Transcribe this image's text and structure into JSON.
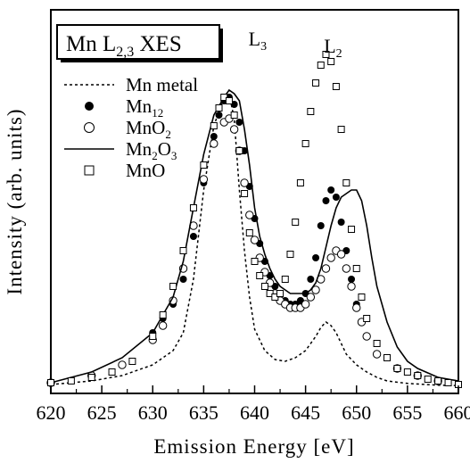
{
  "chart_data": {
    "type": "scatter",
    "title": "Mn L",
    "title_sub": "2,3",
    "title_suffix": " XES",
    "xlabel": "Emission Energy [eV]",
    "ylabel": "Intensity (arb. units)",
    "xlim": [
      620,
      660
    ],
    "ylim": [
      0,
      1.0
    ],
    "grid": false,
    "legend_position": "left",
    "x_ticks": [
      620,
      625,
      630,
      635,
      640,
      645,
      650,
      655,
      660
    ],
    "y_ticks": [],
    "peak_labels": [
      {
        "main": "L",
        "sub": "3",
        "x": 639.4,
        "y": 0.955
      },
      {
        "main": "L",
        "sub": "2",
        "x": 646.8,
        "y": 0.935
      }
    ],
    "series": [
      {
        "name": "Mn metal",
        "name_main": "Mn metal",
        "name_sub": "",
        "name_suffix": "",
        "style": "dotted",
        "x": [
          620,
          624,
          627,
          630,
          632,
          633,
          634,
          635,
          636,
          637,
          637.5,
          638,
          638.5,
          639,
          639.5,
          640,
          641,
          642,
          643,
          644,
          645,
          646,
          646.5,
          647,
          647.5,
          648,
          649,
          650,
          651,
          652,
          653,
          655,
          658,
          660
        ],
        "y": [
          0.005,
          0.015,
          0.03,
          0.06,
          0.1,
          0.15,
          0.3,
          0.55,
          0.73,
          0.81,
          0.82,
          0.75,
          0.55,
          0.38,
          0.25,
          0.16,
          0.1,
          0.075,
          0.07,
          0.08,
          0.1,
          0.14,
          0.165,
          0.18,
          0.17,
          0.15,
          0.09,
          0.06,
          0.04,
          0.025,
          0.015,
          0.008,
          0.003,
          0.002
        ]
      },
      {
        "name": "Mn12",
        "name_main": "Mn",
        "name_sub": "12",
        "name_suffix": "",
        "style": "filled-circle",
        "x": [
          630,
          631,
          632,
          633,
          634,
          635,
          636,
          636.5,
          637,
          637.5,
          638,
          638.5,
          639,
          639.5,
          640,
          640.5,
          641,
          641.5,
          642,
          642.5,
          643,
          643.5,
          644,
          644.5,
          645,
          645.5,
          646,
          646.5,
          647,
          647.5,
          648,
          648.5,
          649,
          649.5,
          650,
          650.5,
          651,
          652,
          654,
          656,
          658
        ],
        "y": [
          0.15,
          0.19,
          0.23,
          0.3,
          0.42,
          0.57,
          0.7,
          0.76,
          0.8,
          0.81,
          0.79,
          0.74,
          0.66,
          0.56,
          0.47,
          0.4,
          0.35,
          0.31,
          0.28,
          0.26,
          0.24,
          0.23,
          0.23,
          0.24,
          0.26,
          0.3,
          0.36,
          0.45,
          0.52,
          0.55,
          0.53,
          0.46,
          0.38,
          0.3,
          0.23,
          0.18,
          0.14,
          0.09,
          0.05,
          0.03,
          0.015
        ]
      },
      {
        "name": "MnO2",
        "name_main": "MnO",
        "name_sub": "2",
        "name_suffix": "",
        "style": "open-circle",
        "x": [
          620,
          624,
          627,
          630,
          631,
          632,
          633,
          634,
          635,
          636,
          637,
          637.5,
          638,
          638.5,
          639,
          639.5,
          640,
          640.5,
          641,
          641.5,
          642,
          642.5,
          643,
          643.5,
          644,
          644.5,
          645,
          645.5,
          646,
          646.5,
          647,
          647.5,
          648,
          648.5,
          649,
          649.5,
          650,
          650.5,
          651,
          652,
          654,
          656,
          658
        ],
        "y": [
          0.01,
          0.03,
          0.06,
          0.13,
          0.17,
          0.24,
          0.33,
          0.45,
          0.58,
          0.68,
          0.74,
          0.75,
          0.72,
          0.66,
          0.57,
          0.48,
          0.41,
          0.36,
          0.32,
          0.29,
          0.26,
          0.24,
          0.23,
          0.22,
          0.22,
          0.22,
          0.23,
          0.25,
          0.27,
          0.3,
          0.33,
          0.36,
          0.38,
          0.37,
          0.33,
          0.28,
          0.22,
          0.18,
          0.14,
          0.09,
          0.05,
          0.03,
          0.015
        ]
      },
      {
        "name": "Mn2O3",
        "name_main": "Mn",
        "name_sub": "2",
        "name_suffix": "O",
        "name_sub2": "3",
        "style": "solid",
        "x": [
          620,
          624,
          627,
          630,
          632,
          633,
          634,
          635,
          636,
          637,
          637.5,
          638,
          638.5,
          639,
          639.5,
          640,
          640.5,
          641,
          641.5,
          642,
          642.5,
          643,
          643.5,
          644,
          644.5,
          645,
          645.5,
          646,
          646.5,
          647,
          647.5,
          648,
          648.5,
          649,
          649.5,
          650,
          650.5,
          651,
          651.5,
          652,
          653,
          654,
          655,
          656,
          658,
          660
        ],
        "y": [
          0.01,
          0.04,
          0.08,
          0.15,
          0.25,
          0.35,
          0.5,
          0.65,
          0.76,
          0.81,
          0.83,
          0.82,
          0.8,
          0.72,
          0.62,
          0.5,
          0.42,
          0.37,
          0.33,
          0.3,
          0.28,
          0.27,
          0.26,
          0.26,
          0.26,
          0.26,
          0.27,
          0.29,
          0.33,
          0.39,
          0.45,
          0.5,
          0.53,
          0.54,
          0.55,
          0.55,
          0.52,
          0.45,
          0.36,
          0.28,
          0.18,
          0.11,
          0.07,
          0.05,
          0.025,
          0.015
        ]
      },
      {
        "name": "MnO",
        "name_main": "MnO",
        "name_sub": "",
        "name_suffix": "",
        "style": "open-square",
        "x": [
          620,
          622,
          624,
          626,
          628,
          630,
          631,
          632,
          633,
          634,
          635,
          636,
          636.5,
          637,
          637.5,
          638,
          638.5,
          639,
          639.5,
          640,
          640.5,
          641,
          641.5,
          642,
          642.5,
          643,
          643.5,
          644,
          644.5,
          645,
          645.5,
          646,
          646.5,
          647,
          647.5,
          648,
          648.5,
          649,
          649.5,
          650,
          650.5,
          651,
          652,
          653,
          654,
          655,
          656,
          657,
          658,
          659,
          660
        ],
        "y": [
          0.01,
          0.015,
          0.025,
          0.04,
          0.07,
          0.14,
          0.2,
          0.28,
          0.38,
          0.5,
          0.62,
          0.73,
          0.78,
          0.81,
          0.8,
          0.76,
          0.66,
          0.54,
          0.43,
          0.35,
          0.31,
          0.28,
          0.26,
          0.25,
          0.26,
          0.3,
          0.37,
          0.46,
          0.57,
          0.68,
          0.77,
          0.85,
          0.9,
          0.93,
          0.91,
          0.84,
          0.72,
          0.57,
          0.44,
          0.33,
          0.25,
          0.19,
          0.12,
          0.08,
          0.05,
          0.04,
          0.03,
          0.02,
          0.015,
          0.01,
          0.005
        ]
      }
    ]
  }
}
